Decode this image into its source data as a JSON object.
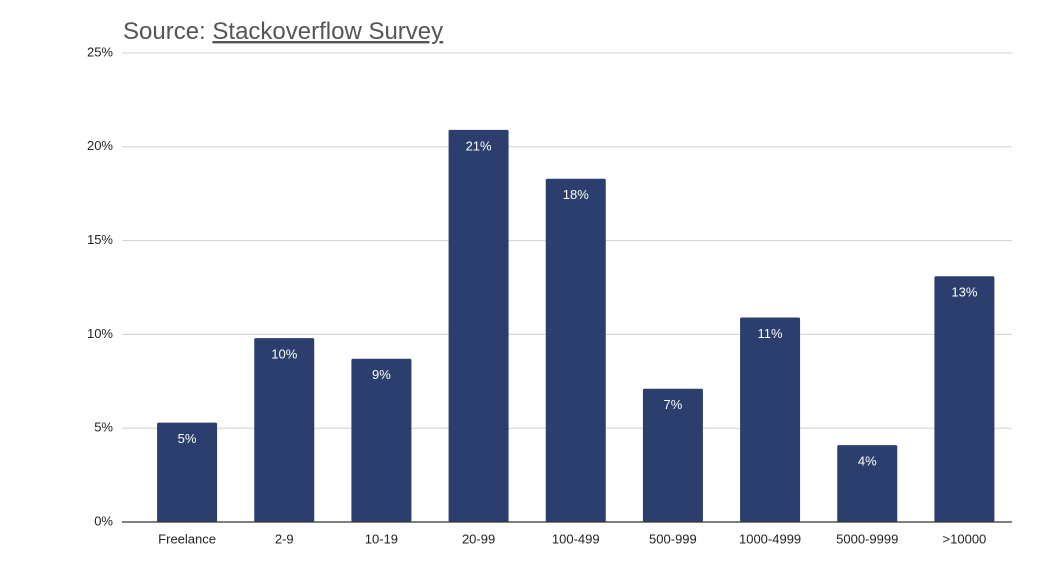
{
  "chart_data": {
    "type": "bar",
    "title": "Source:",
    "title_link": "Stackoverflow Survey",
    "categories": [
      "Freelance",
      "2-9",
      "10-19",
      "20-99",
      "100-499",
      "500-999",
      "1000-4999",
      "5000-9999",
      ">10000"
    ],
    "values": [
      5.3,
      9.8,
      8.7,
      20.9,
      18.3,
      7.1,
      10.9,
      4.1,
      13.1
    ],
    "value_labels": [
      "5%",
      "10%",
      "9%",
      "21%",
      "18%",
      "7%",
      "11%",
      "4%",
      "13%"
    ],
    "color": "#2c3e6d",
    "ylim": [
      0,
      25
    ],
    "yticks": [
      {
        "value": 0,
        "label": "0%"
      },
      {
        "value": 5,
        "label": "5%"
      },
      {
        "value": 10,
        "label": "10%"
      },
      {
        "value": 15,
        "label": "15%"
      },
      {
        "value": 20,
        "label": "20%"
      },
      {
        "value": 25,
        "label": "25%"
      }
    ],
    "grid": true
  }
}
